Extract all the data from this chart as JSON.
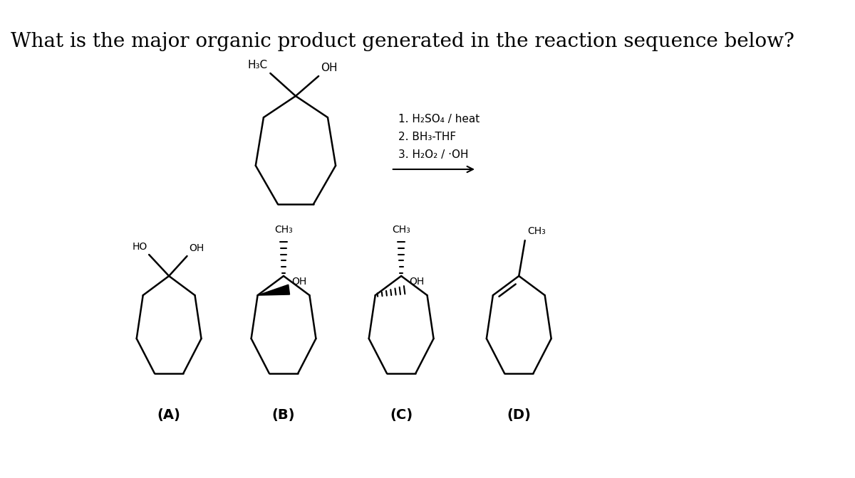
{
  "title": "What is the major organic product generated in the reaction sequence below?",
  "title_fontsize": 20,
  "background_color": "#ffffff",
  "reagents_line1": "1. H₂SO₄ / heat",
  "reagents_line2": "2. BH₃-THF",
  "reagents_line3": "3. H₂O₂ / ·OH",
  "labels": [
    "(A)",
    "(B)",
    "(C)",
    "(D)"
  ]
}
